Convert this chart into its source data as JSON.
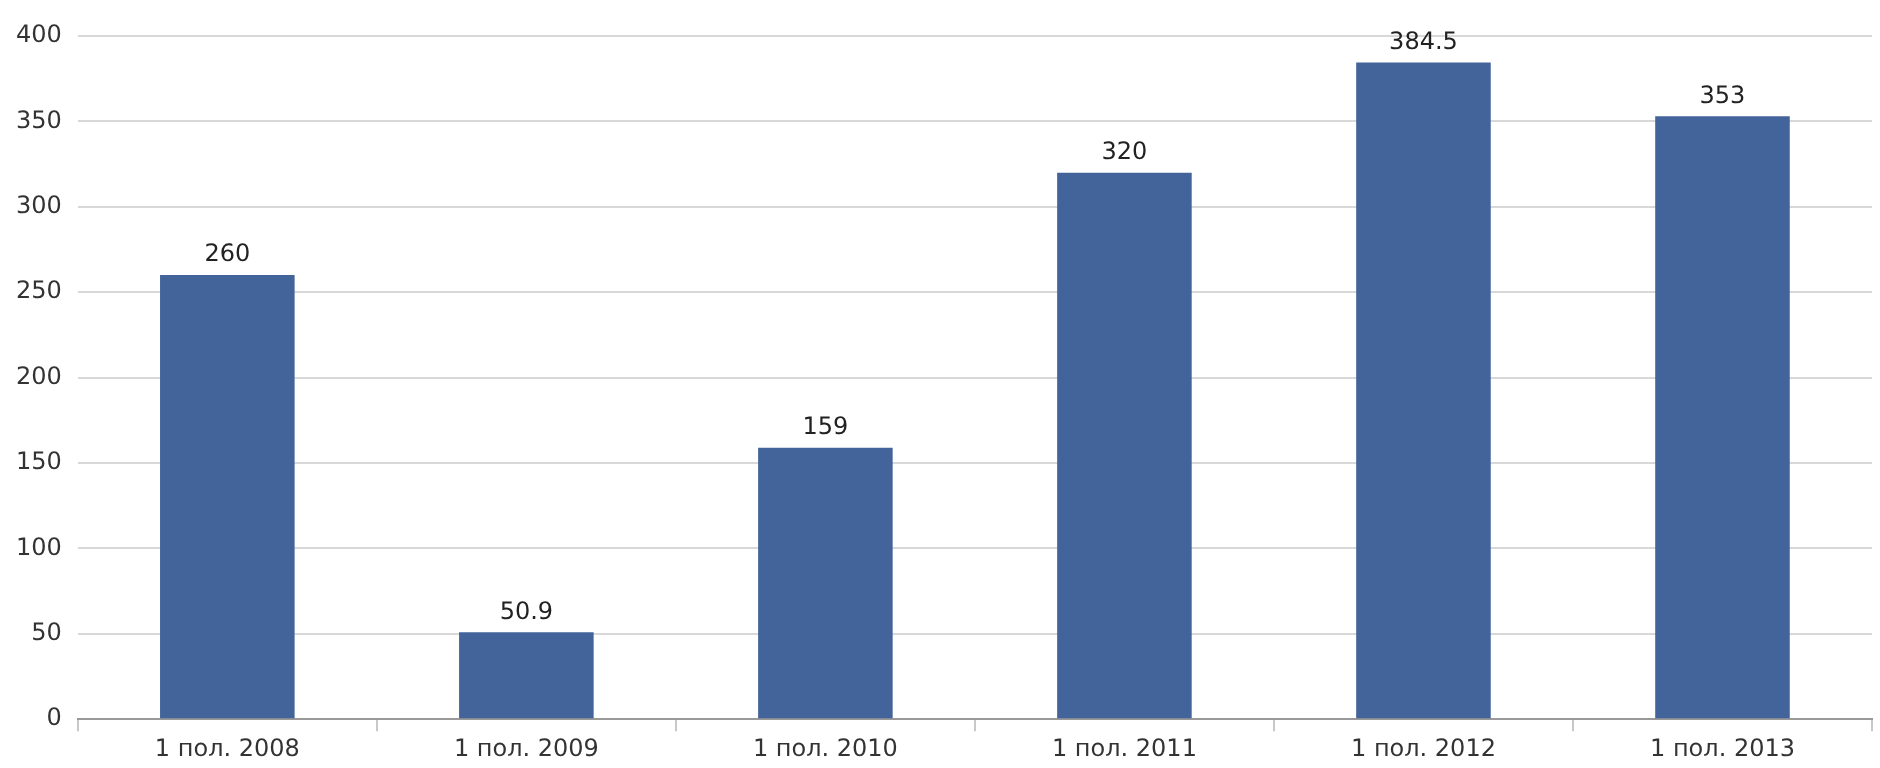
{
  "chart_data": {
    "type": "bar",
    "categories": [
      "1 пол. 2008",
      "1 пол. 2009",
      "1 пол. 2010",
      "1 пол. 2011",
      "1 пол. 2012",
      "1 пол. 2013"
    ],
    "values": [
      260,
      50.9,
      159,
      320,
      384.5,
      353
    ],
    "color": "#43639b",
    "ylim": [
      0,
      400
    ],
    "yticks": [
      0,
      50,
      100,
      150,
      200,
      250,
      300,
      350,
      400
    ],
    "grid": "y",
    "data_labels": true,
    "legend": false
  }
}
